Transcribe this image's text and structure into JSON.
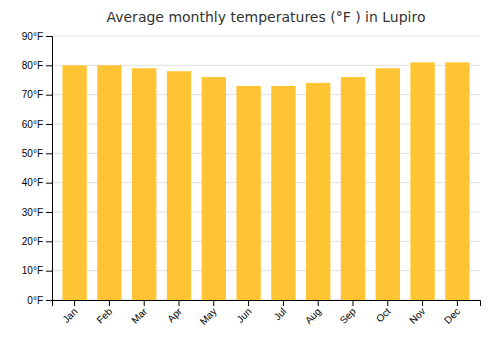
{
  "chart_data": {
    "type": "bar",
    "title": "Average monthly temperatures (°F ) in Lupiro",
    "categories": [
      "Jan",
      "Feb",
      "Mar",
      "Apr",
      "May",
      "Jun",
      "Jul",
      "Aug",
      "Sep",
      "Oct",
      "Nov",
      "Dec"
    ],
    "values": [
      80,
      80,
      79,
      78,
      76,
      73,
      73,
      74,
      76,
      79,
      81,
      81
    ],
    "color": "#FFC433",
    "ylim": [
      0,
      90
    ],
    "yticks": [
      {
        "value": 0,
        "label": "0°F"
      },
      {
        "value": 10,
        "label": "10°F"
      },
      {
        "value": 20,
        "label": "20°F"
      },
      {
        "value": 30,
        "label": "30°F"
      },
      {
        "value": 40,
        "label": "40°F"
      },
      {
        "value": 50,
        "label": "50°F"
      },
      {
        "value": 60,
        "label": "60°F"
      },
      {
        "value": 70,
        "label": "70°F"
      },
      {
        "value": 80,
        "label": "80°F"
      },
      {
        "value": 90,
        "label": "90°F"
      }
    ],
    "grid": true
  }
}
